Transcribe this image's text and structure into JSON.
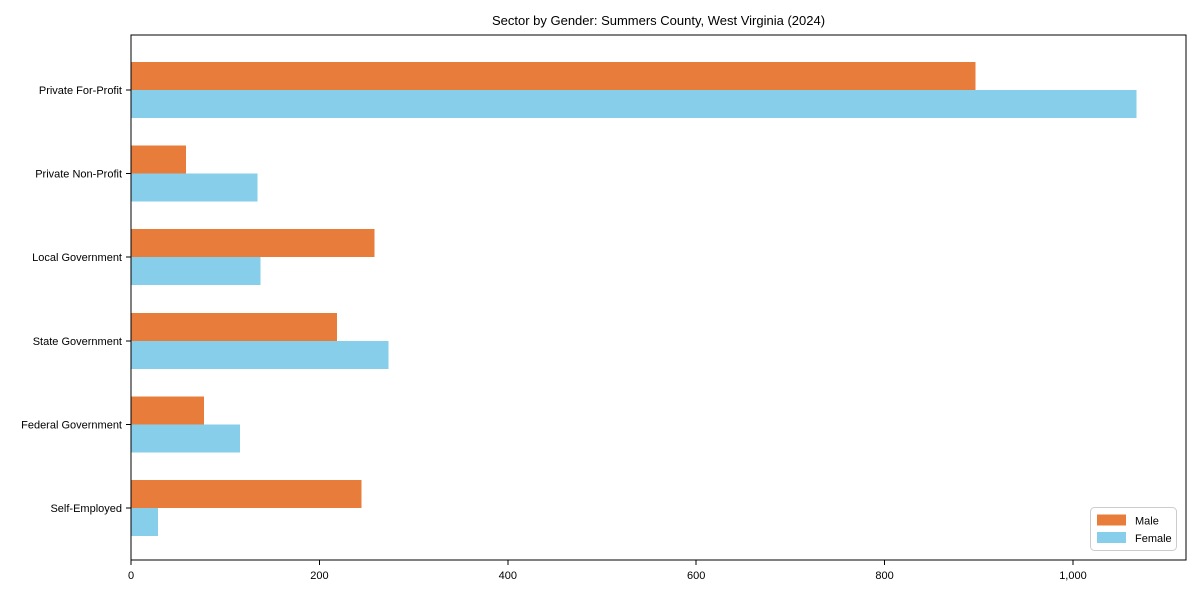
{
  "figure": {
    "background": "#ffffff"
  },
  "chart_data": {
    "type": "bar",
    "orientation": "horizontal",
    "title": "Sector by Gender: Summers County, West Virginia (2024)",
    "xlabel": "",
    "ylabel": "",
    "categories": [
      "Private For-Profit",
      "Private Non-Profit",
      "Local Government",
      "State Government",
      "Federal Government",
      "Self-Employed"
    ],
    "series": [
      {
        "name": "Male",
        "color": "#e87d3b",
        "values": [
          896,
          58,
          258,
          218,
          77,
          244
        ]
      },
      {
        "name": "Female",
        "color": "#87ceeb",
        "values": [
          1067,
          134,
          137,
          273,
          115,
          28
        ]
      }
    ],
    "xlim": [
      0,
      1120
    ],
    "xticks": [
      0,
      200,
      400,
      600,
      800,
      1000
    ],
    "xtick_labels": [
      "0",
      "200",
      "400",
      "600",
      "800",
      "1,000"
    ],
    "grid": false,
    "legend": {
      "position": "lower-right",
      "entries": [
        "Male",
        "Female"
      ]
    },
    "axis_color": "#000000",
    "plot_border": true
  }
}
